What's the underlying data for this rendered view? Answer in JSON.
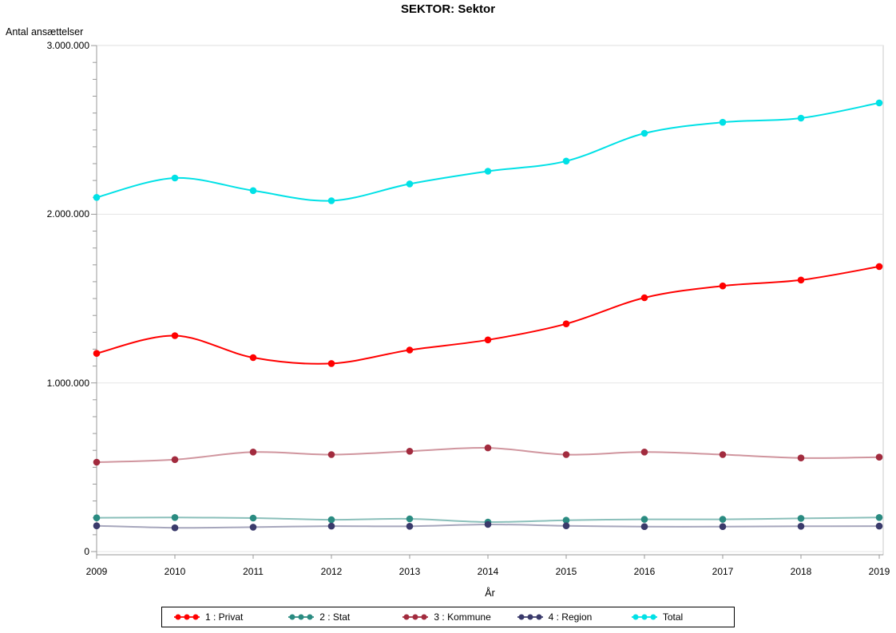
{
  "chart": {
    "title": "SEKTOR: Sektor",
    "y_axis_title": "Antal ansættelser",
    "x_axis_title": "År"
  },
  "chart_data": {
    "type": "line",
    "title": "SEKTOR: Sektor",
    "xlabel": "År",
    "ylabel": "Antal ansættelser",
    "x": [
      2009,
      2010,
      2011,
      2012,
      2013,
      2014,
      2015,
      2016,
      2017,
      2018,
      2019
    ],
    "ylim": [
      0,
      3000000
    ],
    "y_major_ticks": [
      0,
      1000000,
      2000000,
      3000000
    ],
    "y_tick_labels": [
      "0",
      "1.000.000",
      "2.000.000",
      "3.000.000"
    ],
    "y_minor_tick_interval": 100000,
    "grid": "horizontal-major",
    "legend_position": "bottom",
    "series": [
      {
        "id": "privat",
        "name": "1 : Privat",
        "color": "#FF0000",
        "line_alpha": 1,
        "values": [
          1175000,
          1280000,
          1150000,
          1115000,
          1195000,
          1255000,
          1350000,
          1505000,
          1575000,
          1610000,
          1690000
        ]
      },
      {
        "id": "stat",
        "name": "2 : Stat",
        "color": "#2A8B81",
        "line_alpha": 0.55,
        "values": [
          200000,
          202000,
          199000,
          189000,
          194000,
          175000,
          186000,
          191000,
          191000,
          197000,
          202000
        ]
      },
      {
        "id": "kommune",
        "name": "3 : Kommune",
        "color": "#A22B3E",
        "line_alpha": 0.5,
        "values": [
          530000,
          545000,
          590000,
          575000,
          595000,
          615000,
          575000,
          590000,
          575000,
          555000,
          560000
        ]
      },
      {
        "id": "region",
        "name": "4 : Region",
        "color": "#3A3A6B",
        "line_alpha": 0.45,
        "values": [
          153000,
          141000,
          145000,
          151000,
          150000,
          161000,
          153000,
          148000,
          148000,
          150000,
          151000
        ]
      },
      {
        "id": "total",
        "name": "Total",
        "color": "#00E1E6",
        "line_alpha": 1,
        "values": [
          2100000,
          2215000,
          2140000,
          2080000,
          2180000,
          2255000,
          2315000,
          2480000,
          2545000,
          2570000,
          2660000
        ]
      }
    ]
  }
}
